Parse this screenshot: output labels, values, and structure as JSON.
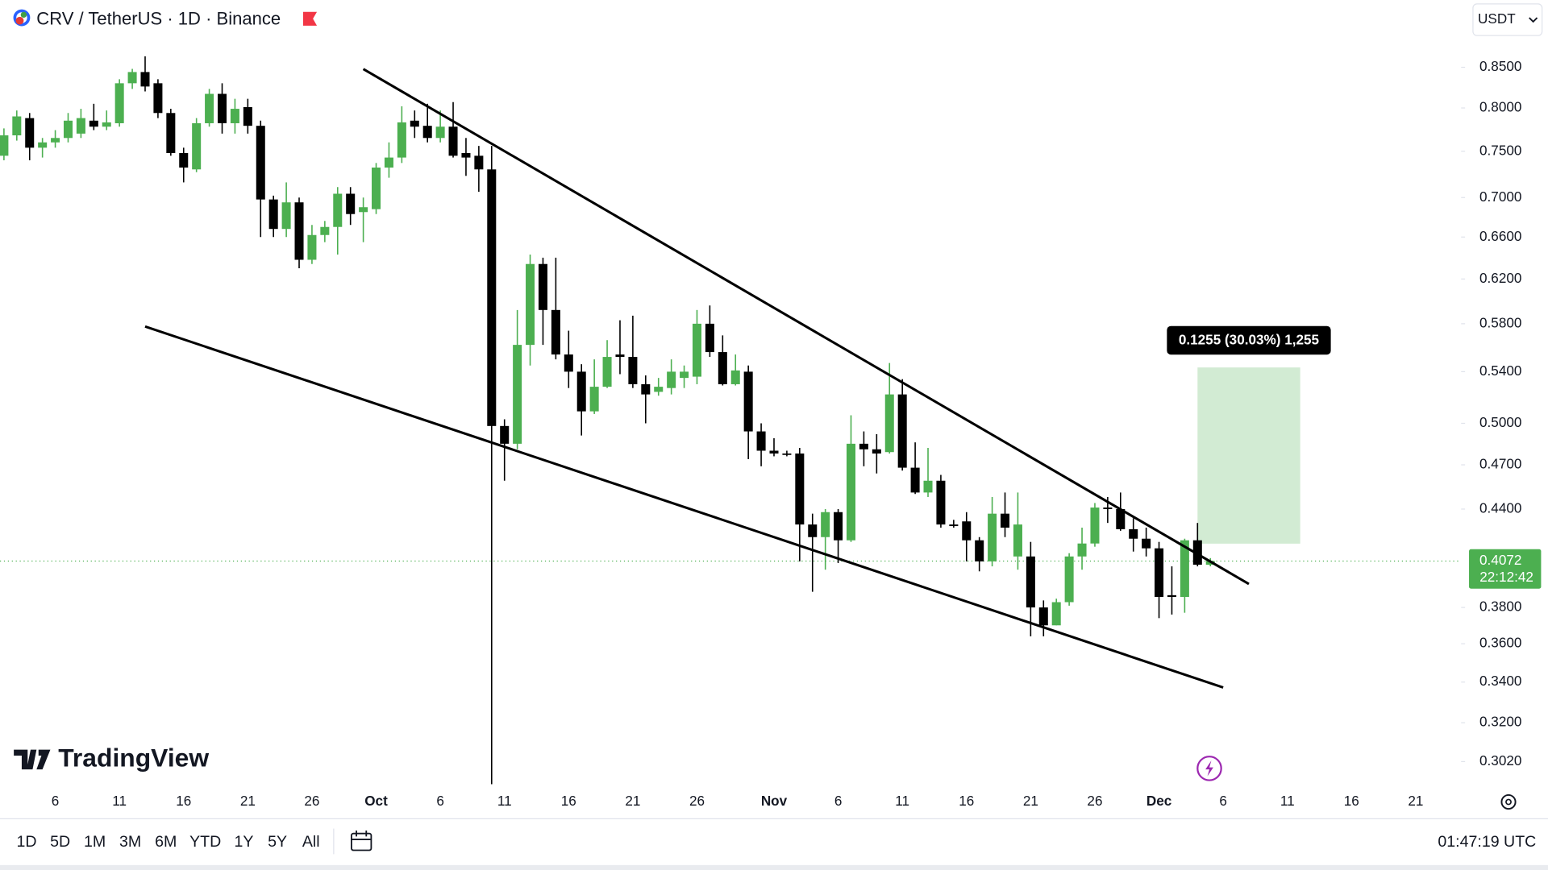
{
  "header": {
    "title": "CRV / TetherUS · 1D · Binance",
    "currency": "USDT"
  },
  "watermark": "TradingView",
  "toolbar": {
    "ranges": [
      "1D",
      "5D",
      "1M",
      "3M",
      "6M",
      "YTD",
      "1Y",
      "5Y",
      "All"
    ],
    "clock": "01:47:19 UTC"
  },
  "chart_data": {
    "type": "candlestick",
    "log_scale": true,
    "grid": false,
    "up_color": "#4caf50",
    "down_color": "#000000",
    "ylim": [
      0.292,
      0.886
    ],
    "yticks": [
      {
        "value": 0.85,
        "label": "0.8500"
      },
      {
        "value": 0.8,
        "label": "0.8000"
      },
      {
        "value": 0.75,
        "label": "0.7500"
      },
      {
        "value": 0.7,
        "label": "0.7000"
      },
      {
        "value": 0.66,
        "label": "0.6600"
      },
      {
        "value": 0.62,
        "label": "0.6200"
      },
      {
        "value": 0.58,
        "label": "0.5800"
      },
      {
        "value": 0.54,
        "label": "0.5400"
      },
      {
        "value": 0.5,
        "label": "0.5000"
      },
      {
        "value": 0.47,
        "label": "0.4700"
      },
      {
        "value": 0.44,
        "label": "0.4400"
      },
      {
        "value": 0.38,
        "label": "0.3800"
      },
      {
        "value": 0.36,
        "label": "0.3600"
      },
      {
        "value": 0.34,
        "label": "0.3400"
      },
      {
        "value": 0.32,
        "label": "0.3200"
      },
      {
        "value": 0.302,
        "label": "0.3020"
      }
    ],
    "categories": [
      null,
      null,
      null,
      null,
      "6",
      null,
      null,
      null,
      null,
      "11",
      null,
      null,
      null,
      null,
      "16",
      null,
      null,
      null,
      null,
      "21",
      null,
      null,
      null,
      null,
      "26",
      null,
      null,
      null,
      null,
      "Oct",
      null,
      null,
      null,
      null,
      "6",
      null,
      null,
      null,
      null,
      "11",
      null,
      null,
      null,
      null,
      "16",
      null,
      null,
      null,
      null,
      "21",
      null,
      null,
      null,
      null,
      "26",
      null,
      null,
      null,
      null,
      null,
      "Nov",
      null,
      null,
      null,
      null,
      "6",
      null,
      null,
      null,
      null,
      "11",
      null,
      null,
      null,
      null,
      "16",
      null,
      null,
      null,
      null,
      "21",
      null,
      null,
      null,
      null,
      "26",
      null,
      null,
      null,
      null,
      "Dec",
      null,
      null,
      null,
      null,
      "6",
      null,
      null,
      null,
      null,
      "11",
      null,
      null,
      null,
      null,
      "16",
      null,
      null,
      null,
      null,
      "21",
      null,
      null,
      null
    ],
    "open": [
      0.745,
      0.768,
      0.788,
      0.754,
      0.76,
      0.765,
      0.77,
      0.785,
      0.778,
      0.782,
      0.83,
      0.844,
      0.83,
      0.794,
      0.748,
      0.73,
      0.782,
      0.817,
      0.782,
      0.801,
      0.779,
      0.698,
      0.668,
      0.695,
      0.638,
      0.662,
      0.67,
      0.704,
      0.685,
      0.688,
      0.732,
      0.743,
      0.785,
      0.779,
      0.765,
      0.778,
      0.748,
      0.745,
      0.73,
      0.498,
      0.485,
      0.562,
      0.634,
      0.592,
      0.554,
      0.54,
      0.509,
      0.528,
      0.554,
      0.552,
      0.53,
      0.524,
      0.527,
      0.535,
      0.536,
      0.58,
      0.556,
      0.53,
      0.54,
      0.494,
      0.48,
      0.478,
      0.478,
      0.43,
      0.422,
      0.438,
      0.42,
      0.485,
      0.481,
      0.479,
      0.522,
      0.468,
      0.451,
      0.459,
      0.43,
      0.432,
      0.42,
      0.407,
      0.437,
      0.41,
      0.41,
      0.38,
      0.37,
      0.383,
      0.41,
      0.418,
      0.441,
      0.44,
      0.427,
      0.421,
      0.415,
      0.387,
      0.386,
      0.42,
      0.405,
      null,
      null,
      null,
      null,
      null,
      null,
      null,
      null,
      null,
      null,
      null,
      null,
      null,
      null,
      null,
      null,
      null,
      null,
      null
    ],
    "high": [
      0.776,
      0.797,
      0.794,
      0.765,
      0.774,
      0.794,
      0.799,
      0.805,
      0.797,
      0.835,
      0.848,
      0.864,
      0.835,
      0.799,
      0.754,
      0.788,
      0.823,
      0.83,
      0.811,
      0.811,
      0.785,
      0.702,
      0.716,
      0.7,
      0.672,
      0.676,
      0.711,
      0.711,
      0.7,
      0.737,
      0.76,
      0.802,
      0.797,
      0.805,
      0.797,
      0.807,
      0.765,
      0.756,
      0.756,
      0.503,
      0.592,
      0.643,
      0.64,
      0.64,
      0.574,
      0.546,
      0.55,
      0.566,
      0.583,
      0.587,
      0.537,
      0.535,
      0.55,
      0.545,
      0.592,
      0.596,
      0.57,
      0.554,
      0.545,
      0.5,
      0.489,
      0.48,
      0.482,
      0.437,
      0.44,
      0.44,
      0.506,
      0.494,
      0.492,
      0.547,
      0.534,
      0.486,
      0.482,
      0.463,
      0.433,
      0.438,
      0.422,
      0.448,
      0.451,
      0.451,
      0.419,
      0.384,
      0.385,
      0.412,
      0.428,
      0.444,
      0.448,
      0.451,
      0.434,
      0.428,
      0.419,
      0.404,
      0.421,
      0.431,
      0.409,
      null,
      null,
      null,
      null,
      null,
      null,
      null,
      null,
      null,
      null,
      null,
      null,
      null,
      null,
      null,
      null,
      null,
      null,
      null
    ],
    "low": [
      0.74,
      0.762,
      0.74,
      0.743,
      0.754,
      0.76,
      0.765,
      0.774,
      0.774,
      0.778,
      0.823,
      0.82,
      0.788,
      0.745,
      0.716,
      0.727,
      0.778,
      0.77,
      0.77,
      0.77,
      0.66,
      0.66,
      0.66,
      0.63,
      0.634,
      0.655,
      0.643,
      0.672,
      0.655,
      0.683,
      0.721,
      0.737,
      0.765,
      0.76,
      0.76,
      0.743,
      0.723,
      0.706,
      0.292,
      0.459,
      0.481,
      0.545,
      0.562,
      0.55,
      0.527,
      0.491,
      0.507,
      0.527,
      0.538,
      0.527,
      0.5,
      0.521,
      0.522,
      0.527,
      0.53,
      0.552,
      0.529,
      0.529,
      0.474,
      0.469,
      0.476,
      0.476,
      0.407,
      0.389,
      0.402,
      0.406,
      0.419,
      0.469,
      0.464,
      0.478,
      0.466,
      0.45,
      0.448,
      0.428,
      0.428,
      0.407,
      0.401,
      0.404,
      0.422,
      0.402,
      0.364,
      0.364,
      0.37,
      0.381,
      0.402,
      0.416,
      0.431,
      0.426,
      0.413,
      0.41,
      0.374,
      0.376,
      0.377,
      0.404,
      0.404,
      null,
      null,
      null,
      null,
      null,
      null,
      null,
      null,
      null,
      null,
      null,
      null,
      null,
      null,
      null,
      null,
      null,
      null,
      null
    ],
    "close": [
      0.768,
      0.79,
      0.754,
      0.76,
      0.765,
      0.785,
      0.788,
      0.778,
      0.783,
      0.83,
      0.844,
      0.826,
      0.794,
      0.748,
      0.732,
      0.782,
      0.817,
      0.782,
      0.799,
      0.779,
      0.698,
      0.668,
      0.695,
      0.638,
      0.662,
      0.67,
      0.704,
      0.683,
      0.69,
      0.732,
      0.743,
      0.783,
      0.778,
      0.765,
      0.778,
      0.745,
      0.743,
      0.73,
      0.498,
      0.485,
      0.562,
      0.634,
      0.592,
      0.554,
      0.54,
      0.509,
      0.528,
      0.552,
      0.552,
      0.53,
      0.522,
      0.528,
      0.54,
      0.54,
      0.58,
      0.556,
      0.53,
      0.541,
      0.494,
      0.48,
      0.478,
      0.477,
      0.43,
      0.422,
      0.438,
      0.42,
      0.485,
      0.481,
      0.478,
      0.522,
      0.468,
      0.451,
      0.459,
      0.43,
      0.429,
      0.42,
      0.407,
      0.437,
      0.428,
      0.43,
      0.38,
      0.37,
      0.383,
      0.41,
      0.418,
      0.441,
      0.44,
      0.427,
      0.421,
      0.415,
      0.386,
      0.386,
      0.42,
      0.405,
      0.4072,
      null,
      null,
      null,
      null,
      null,
      null,
      null,
      null,
      null,
      null,
      null,
      null,
      null,
      null,
      null,
      null,
      null,
      null,
      null
    ],
    "last_price": 0.4072,
    "countdown": "22:12:42",
    "measure": {
      "label": "0.1255 (30.03%) 1,255",
      "from": 0.4179,
      "to": 0.5434
    }
  }
}
